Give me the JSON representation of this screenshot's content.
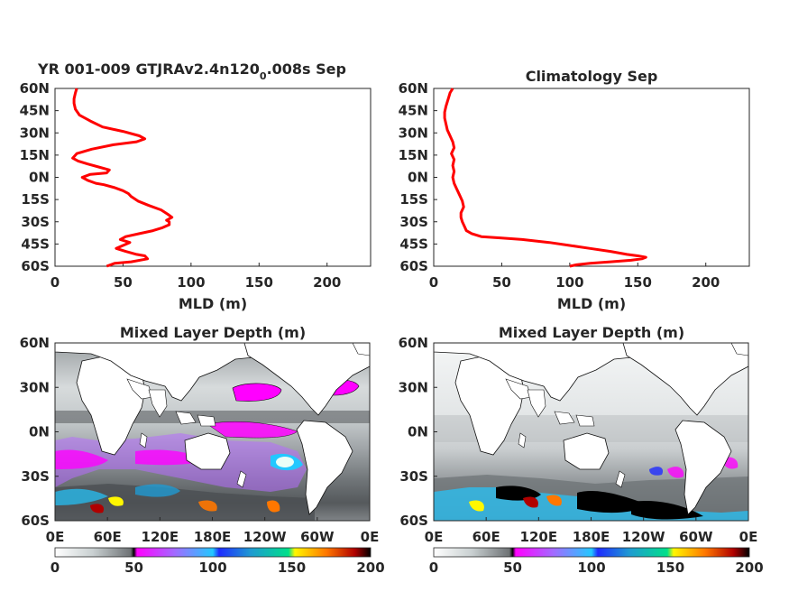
{
  "colors": {
    "profile_line": "#ff0000",
    "axis": "#262626",
    "land": "#ffffff"
  },
  "chart_data": [
    {
      "id": "profile-model",
      "type": "line",
      "title_main": "YR 001-009 GTJRAv2.4n120",
      "title_sub": "0",
      "title_end": ".008s Sep",
      "xlabel": "MLD (m)",
      "ylabel": "",
      "xlim": [
        0,
        232
      ],
      "ylim": [
        -60,
        60
      ],
      "xticks": [
        0,
        50,
        100,
        150,
        200
      ],
      "xtick_labels": [
        "0",
        "50",
        "100",
        "150",
        "200"
      ],
      "yticks": [
        60,
        45,
        30,
        15,
        0,
        -15,
        -30,
        -45,
        -60
      ],
      "ytick_labels": [
        "60N",
        "45N",
        "30N",
        "15N",
        "0N",
        "15S",
        "30S",
        "45S",
        "60S"
      ],
      "series": [
        {
          "lat": [
            60,
            57,
            53,
            50,
            46,
            42,
            38,
            34,
            31,
            28,
            26,
            24,
            22,
            19,
            16,
            13,
            11,
            9,
            7,
            5,
            3,
            2,
            0,
            -2,
            -4,
            -5,
            -7,
            -9,
            -11,
            -13,
            -16,
            -19,
            -22,
            -25,
            -27,
            -29,
            -30,
            -32,
            -34,
            -36,
            -38,
            -40,
            -42,
            -44,
            -46,
            -48,
            -50,
            -52,
            -53,
            -55,
            -57,
            -58,
            -60
          ],
          "mld": [
            16,
            15,
            14,
            14,
            15,
            18,
            26,
            35,
            50,
            62,
            66,
            60,
            43,
            27,
            16,
            13,
            17,
            24,
            32,
            40,
            38,
            26,
            20,
            24,
            30,
            36,
            44,
            50,
            54,
            56,
            61,
            69,
            78,
            83,
            86,
            82,
            84,
            84,
            79,
            72,
            62,
            52,
            48,
            55,
            50,
            45,
            52,
            60,
            66,
            68,
            56,
            44,
            38
          ]
        }
      ]
    },
    {
      "id": "profile-climatology",
      "type": "line",
      "title": "Climatology Sep",
      "xlabel": "MLD (m)",
      "ylabel": "",
      "xlim": [
        0,
        232
      ],
      "ylim": [
        -60,
        60
      ],
      "xticks": [
        0,
        50,
        100,
        150,
        200
      ],
      "xtick_labels": [
        "0",
        "50",
        "100",
        "150",
        "200"
      ],
      "yticks": [
        60,
        45,
        30,
        15,
        0,
        -15,
        -30,
        -45,
        -60
      ],
      "ytick_labels": [
        "60N",
        "45N",
        "30N",
        "15N",
        "0N",
        "15S",
        "30S",
        "45S",
        "60S"
      ],
      "series": [
        {
          "lat": [
            60,
            57,
            54,
            51,
            48,
            44,
            40,
            36,
            32,
            28,
            24,
            20,
            16,
            12,
            8,
            4,
            0,
            -4,
            -8,
            -12,
            -16,
            -20,
            -24,
            -27,
            -30,
            -32,
            -34,
            -36,
            -38,
            -40,
            -41,
            -42,
            -44,
            -46,
            -48,
            -50,
            -52,
            -53,
            -54,
            -55,
            -56,
            -57,
            -58,
            -59,
            -60
          ],
          "mld": [
            14,
            12,
            11,
            10,
            9,
            8,
            8,
            9,
            10,
            12,
            14,
            15,
            13,
            15,
            14,
            15,
            14,
            15,
            17,
            19,
            21,
            22,
            20,
            20,
            21,
            22,
            23,
            24,
            28,
            35,
            50,
            65,
            85,
            100,
            115,
            130,
            142,
            150,
            156,
            153,
            145,
            130,
            115,
            105,
            100
          ]
        }
      ]
    },
    {
      "id": "map-model",
      "type": "heatmap",
      "title": "Mixed Layer Depth (m)",
      "xtick_labels": [
        "0E",
        "60E",
        "120E",
        "180E",
        "120W",
        "60W",
        "0E"
      ],
      "ytick_labels": [
        "60N",
        "30N",
        "0N",
        "30S",
        "60S"
      ],
      "colorbar_ticks": [
        "0",
        "50",
        "100",
        "150",
        "200"
      ],
      "colorbar_range": [
        0,
        200
      ]
    },
    {
      "id": "map-climatology",
      "type": "heatmap",
      "title": "Mixed Layer Depth (m)",
      "xtick_labels": [
        "0E",
        "60E",
        "120E",
        "180E",
        "120W",
        "60W",
        "0E"
      ],
      "ytick_labels": [
        "60N",
        "30N",
        "0N",
        "30S",
        "60S"
      ],
      "colorbar_ticks": [
        "0",
        "50",
        "100",
        "150",
        "200"
      ],
      "colorbar_range": [
        0,
        200
      ]
    }
  ]
}
